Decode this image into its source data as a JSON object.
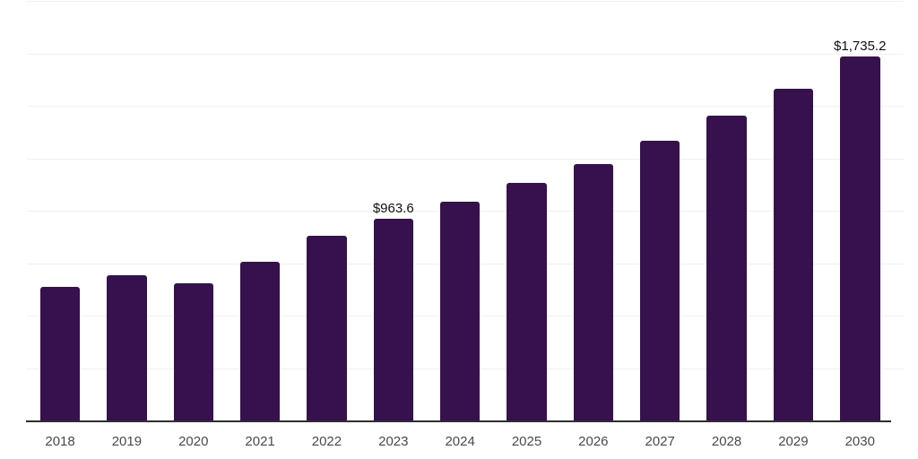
{
  "chart_data": {
    "type": "bar",
    "title": "",
    "xlabel": "",
    "ylabel": "",
    "categories": [
      "2018",
      "2019",
      "2020",
      "2021",
      "2022",
      "2023",
      "2024",
      "2025",
      "2026",
      "2027",
      "2028",
      "2029",
      "2030"
    ],
    "values": [
      637,
      692,
      654,
      756,
      879,
      963.6,
      1042,
      1133,
      1223,
      1335,
      1452,
      1583,
      1735.2
    ],
    "value_labels": {
      "2023": "$963.6",
      "2030": "$1,735.2"
    },
    "ylim": [
      0,
      2000
    ],
    "gridline_step": 250,
    "grid": "horizontal-only",
    "y_axis_tick_labels_shown": false,
    "legend": "none",
    "colors": {
      "bar": "#36114d",
      "gridline": "#f0f0f0",
      "axis_line": "#2e2e2e",
      "tick_label": "#4a4a4a",
      "value_label": "#101010",
      "background": "#ffffff"
    }
  }
}
